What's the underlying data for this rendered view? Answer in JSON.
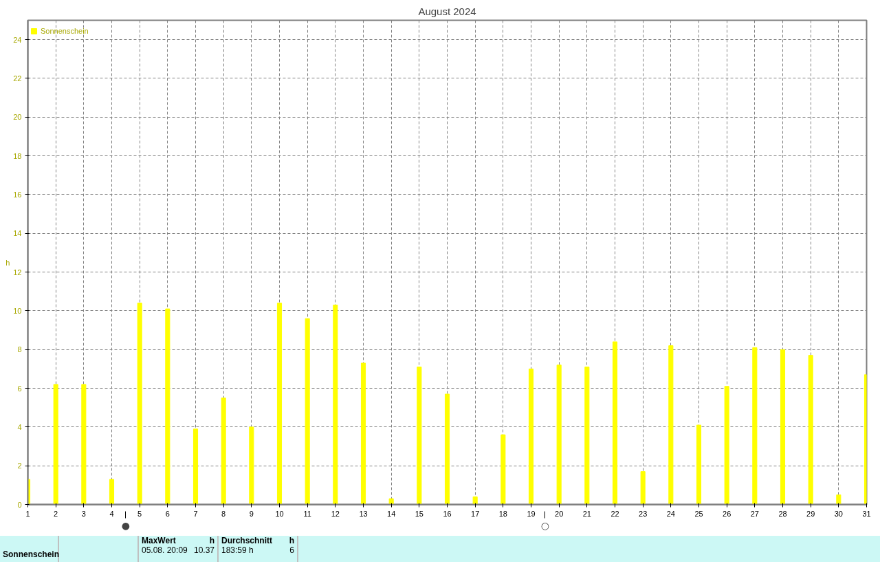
{
  "chart_data": {
    "type": "bar",
    "title": "August 2024",
    "ylabel": "h",
    "x": [
      1,
      2,
      3,
      4,
      5,
      6,
      7,
      8,
      9,
      10,
      11,
      12,
      13,
      14,
      15,
      16,
      17,
      18,
      19,
      20,
      21,
      22,
      23,
      24,
      25,
      26,
      27,
      28,
      29,
      30,
      31
    ],
    "series": [
      {
        "name": "Sonnenschein",
        "color": "#ffff00",
        "values": [
          1.3,
          6.2,
          6.2,
          1.3,
          10.4,
          10.1,
          3.9,
          5.5,
          4.0,
          10.4,
          9.6,
          10.3,
          7.3,
          0.3,
          7.1,
          5.7,
          0.4,
          3.6,
          7.0,
          7.2,
          7.1,
          8.4,
          1.7,
          8.2,
          4.1,
          6.1,
          8.1,
          8.0,
          7.7,
          0.5,
          6.7
        ]
      }
    ],
    "xlim": [
      1,
      31
    ],
    "xticks": [
      1,
      2,
      3,
      4,
      5,
      6,
      7,
      8,
      9,
      10,
      11,
      12,
      13,
      14,
      15,
      16,
      17,
      18,
      19,
      20,
      21,
      22,
      23,
      24,
      25,
      26,
      27,
      28,
      29,
      30,
      31
    ],
    "ylim": [
      0,
      25
    ],
    "yticks": [
      0,
      2,
      4,
      6,
      8,
      10,
      12,
      14,
      16,
      18,
      20,
      22,
      24
    ],
    "grid": true,
    "legend": "top left",
    "ref_lines": [
      {
        "axis": "x",
        "value": 4.5,
        "label": "●"
      },
      {
        "axis": "x",
        "value": 19.5,
        "label": "○"
      }
    ],
    "annotations": [
      "Sonnenschein",
      "MaxWert",
      "h",
      "05.08.  20:09",
      "10.37",
      "Durchschnitt",
      "h",
      "183:59 h",
      "6"
    ]
  }
}
